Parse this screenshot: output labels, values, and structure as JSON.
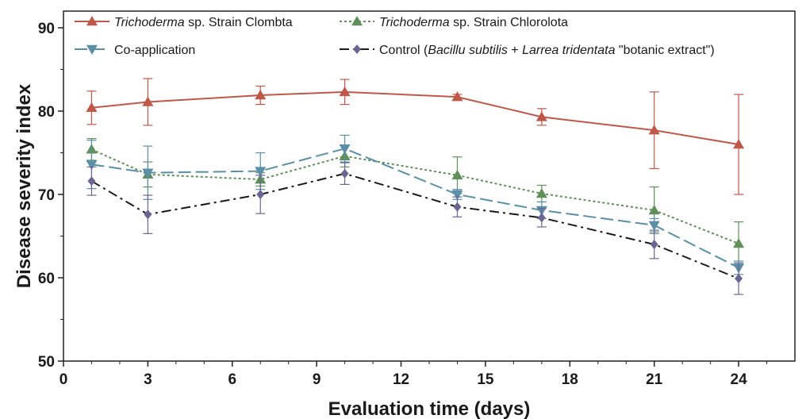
{
  "chart_data": {
    "type": "line",
    "title": "",
    "xlabel": "Evaluation time (days)",
    "ylabel": "Disease severity index",
    "xlim": [
      0,
      26
    ],
    "ylim": [
      50,
      92
    ],
    "xticks": [
      "0",
      "3",
      "6",
      "9",
      "12",
      "15",
      "18",
      "21",
      "24"
    ],
    "yticks": [
      "50",
      "60",
      "70",
      "80",
      "90"
    ],
    "grid": false,
    "legend_position": "top",
    "x": [
      1,
      3,
      7,
      10,
      14,
      17,
      21,
      24
    ],
    "series": [
      {
        "key": "clombta",
        "legend_italic": "Trichoderma",
        "legend_rest": " sp. Strain Clombta",
        "color": "#c0584a",
        "marker": "triangle-up",
        "dash": "solid",
        "values": [
          80.4,
          81.1,
          81.9,
          82.3,
          81.7,
          79.3,
          77.7,
          76.0
        ],
        "err": [
          2.0,
          2.8,
          1.1,
          1.5,
          0.3,
          1.0,
          4.6,
          6.0
        ]
      },
      {
        "key": "chlorolota",
        "legend_italic": "Trichoderma",
        "legend_rest": " sp. Strain Chlorolota",
        "color": "#5f8f5a",
        "marker": "triangle-up",
        "dash": "dot",
        "values": [
          75.4,
          72.4,
          71.8,
          74.6,
          72.3,
          70.1,
          68.1,
          64.1
        ],
        "err": [
          1.3,
          1.5,
          0.8,
          1.3,
          2.2,
          1.0,
          2.8,
          2.6
        ]
      },
      {
        "key": "coapp",
        "legend_plain": "Co-application",
        "color": "#5b8fa8",
        "marker": "triangle-down",
        "dash": "longdash",
        "values": [
          73.6,
          72.6,
          72.8,
          75.5,
          70.0,
          68.1,
          66.3,
          61.2
        ],
        "err": [
          2.9,
          3.2,
          2.2,
          1.6,
          0.6,
          1.0,
          0.8,
          0.8
        ]
      },
      {
        "key": "control",
        "legend_parts": [
          {
            "t": "Control (",
            "i": false
          },
          {
            "t": "Bacillu subtilis",
            "i": true
          },
          {
            "t": " + ",
            "i": false
          },
          {
            "t": "Larrea tridentata",
            "i": true
          },
          {
            "t": " \"botanic extract\")",
            "i": false
          }
        ],
        "color": "#1a1a1a",
        "marker_color": "#6a6593",
        "marker": "diamond",
        "dash": "dashdot",
        "values": [
          71.6,
          67.6,
          70.0,
          72.5,
          68.5,
          67.2,
          64.0,
          59.9
        ],
        "err": [
          1.7,
          2.3,
          2.3,
          1.3,
          1.2,
          1.1,
          1.7,
          1.9
        ]
      }
    ]
  }
}
